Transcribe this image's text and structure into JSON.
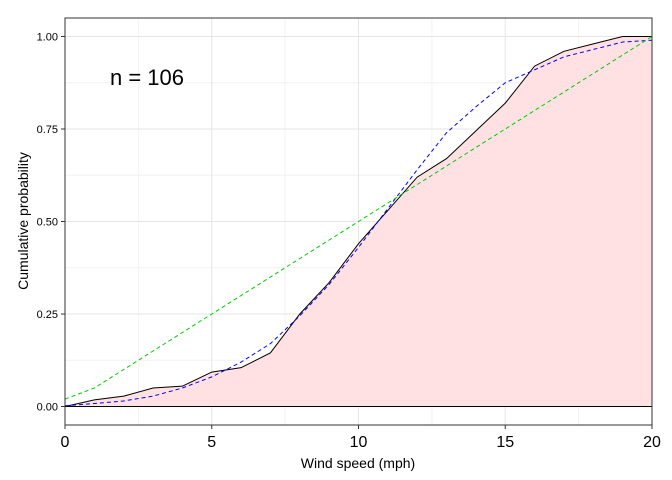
{
  "chart_data": {
    "type": "area",
    "annotation": "n = 106",
    "xlabel": "Wind speed (mph)",
    "ylabel": "Cumulative probability",
    "xlim": [
      0,
      20
    ],
    "ylim": [
      -0.05,
      1.05
    ],
    "x_ticks": [
      0,
      5,
      10,
      15,
      20
    ],
    "x_tick_labels": [
      "0",
      "5",
      "10",
      "15",
      "20"
    ],
    "y_ticks": [
      0,
      0.25,
      0.5,
      0.75,
      1
    ],
    "y_tick_labels": [
      "0.00",
      "0.25",
      "0.50",
      "0.75",
      "1.00"
    ],
    "grid": true,
    "zero_line": true,
    "colors": {
      "empirical_fill": "#ffe0e3",
      "empirical_line": "#000000",
      "dashed_blue": "#0000ff",
      "dashed_green": "#00cc00",
      "grid": "#e6e6e6",
      "grid_minor": "#f2f2f2",
      "panel_border": "#333333"
    },
    "series": [
      {
        "style": "solid-filled",
        "color": "#000000",
        "x": [
          0,
          1,
          2,
          3,
          4,
          5,
          6,
          7,
          8,
          9,
          10,
          11,
          12,
          13,
          14,
          15,
          16,
          17,
          18,
          19,
          20
        ],
        "y": [
          0,
          0.018,
          0.028,
          0.05,
          0.055,
          0.093,
          0.105,
          0.145,
          0.25,
          0.335,
          0.44,
          0.53,
          0.62,
          0.67,
          0.745,
          0.82,
          0.92,
          0.96,
          0.98,
          1.0,
          1.0
        ]
      },
      {
        "style": "dashed",
        "color": "#0000ff",
        "x": [
          0,
          1,
          2,
          3,
          4,
          5,
          6,
          7,
          8,
          9,
          10,
          11,
          12,
          13,
          14,
          15,
          16,
          17,
          18,
          19,
          20
        ],
        "y": [
          0.002,
          0.008,
          0.015,
          0.028,
          0.05,
          0.08,
          0.12,
          0.17,
          0.245,
          0.33,
          0.43,
          0.535,
          0.64,
          0.74,
          0.81,
          0.875,
          0.91,
          0.945,
          0.965,
          0.985,
          0.99
        ]
      },
      {
        "style": "dashed",
        "color": "#00cc00",
        "x": [
          0,
          1,
          2,
          3,
          4,
          5,
          6,
          7,
          8,
          9,
          10,
          11,
          12,
          13,
          14,
          15,
          16,
          17,
          18,
          19,
          20
        ],
        "y": [
          0.02,
          0.05,
          0.1,
          0.15,
          0.2,
          0.25,
          0.3,
          0.35,
          0.4,
          0.45,
          0.5,
          0.55,
          0.6,
          0.65,
          0.7,
          0.75,
          0.8,
          0.85,
          0.9,
          0.95,
          1.0
        ]
      }
    ]
  }
}
